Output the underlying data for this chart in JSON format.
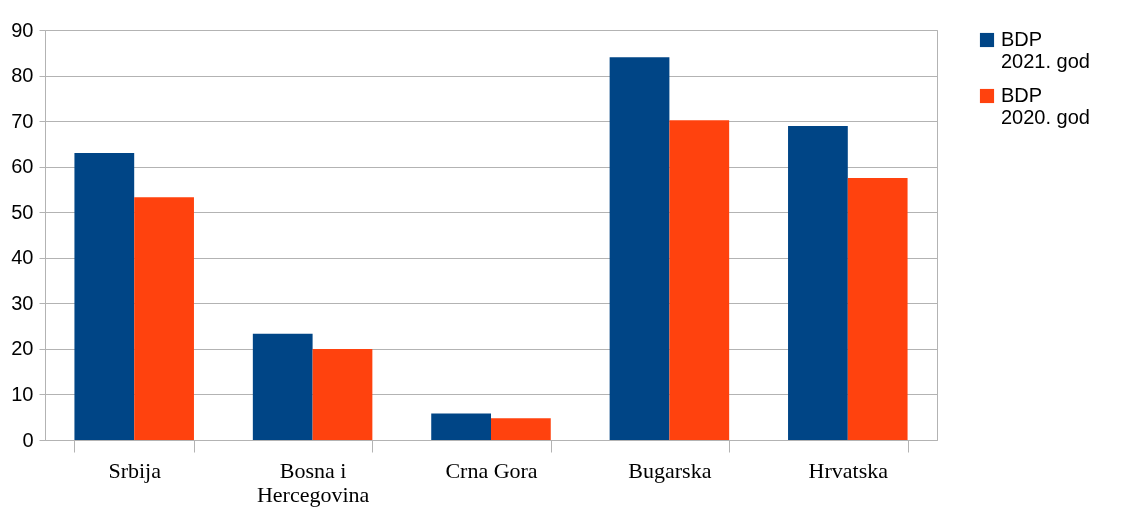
{
  "chart_data": {
    "type": "bar",
    "categories": [
      "Srbija",
      "Bosna i Hercegovina",
      "Crna Gora",
      "Bugarska",
      "Hrvatska"
    ],
    "series": [
      {
        "name": "BDP 2021. god",
        "color": "#004586",
        "values": [
          63.0,
          23.3,
          5.8,
          84.0,
          68.9
        ]
      },
      {
        "name": "BDP 2020. god",
        "color": "#ff420e",
        "values": [
          53.3,
          20.0,
          4.8,
          70.2,
          57.5
        ]
      }
    ],
    "ylim": [
      0,
      90
    ],
    "yticks": [
      0,
      10,
      20,
      30,
      40,
      50,
      60,
      70,
      80,
      90
    ],
    "grid": true,
    "legend": "right"
  }
}
